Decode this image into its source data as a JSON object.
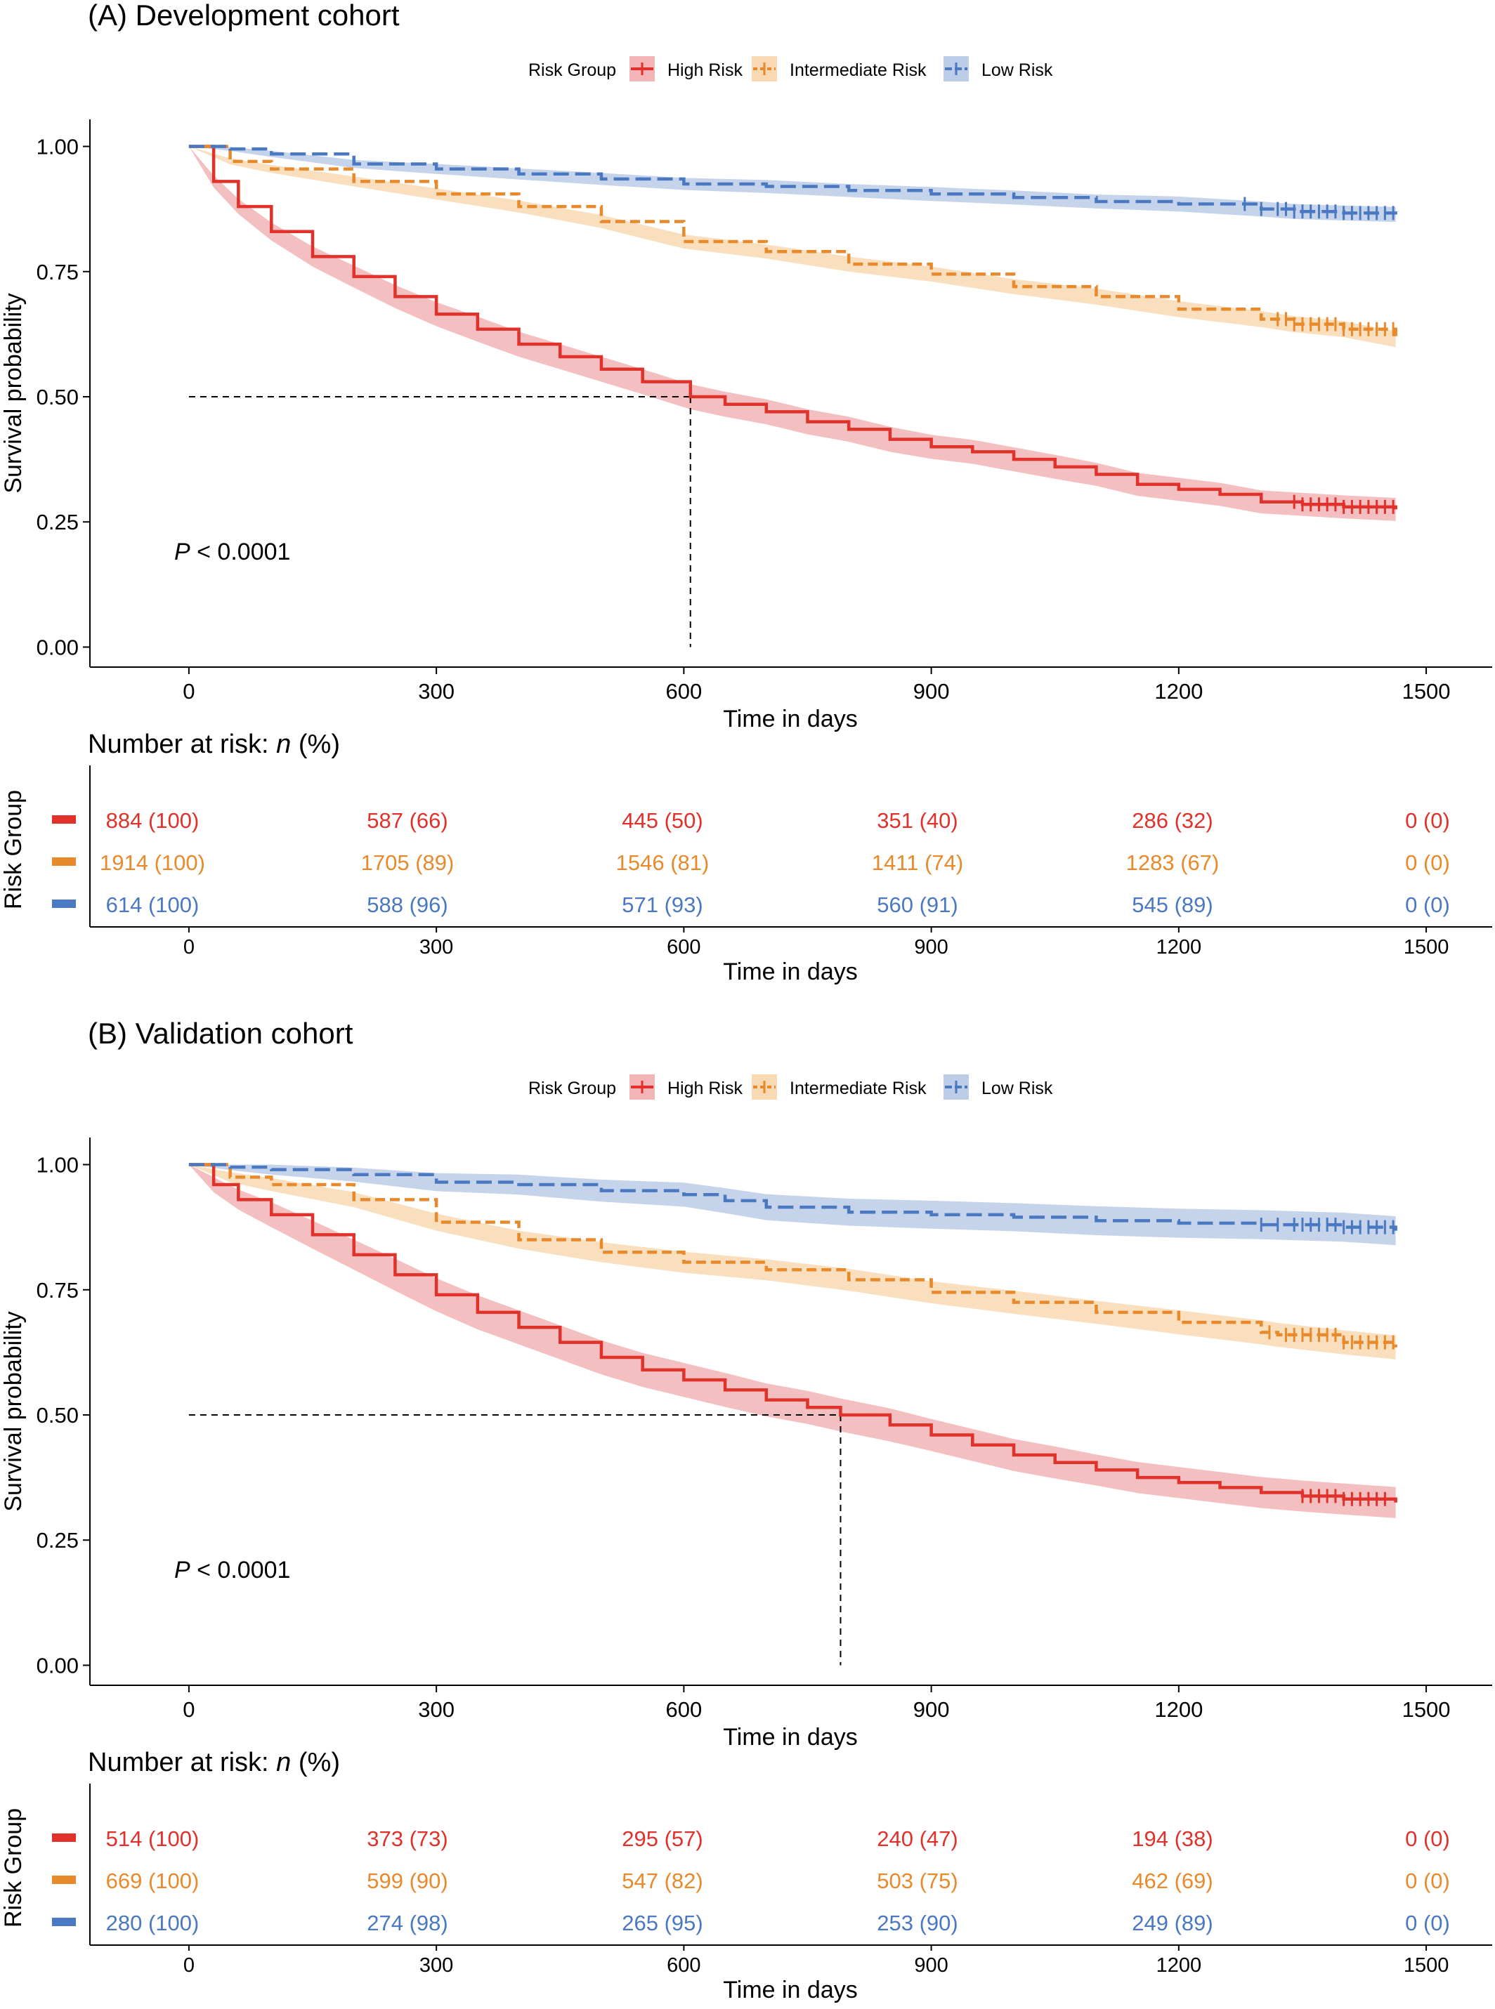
{
  "panels": [
    {
      "id": "A",
      "title": "(A) Development cohort",
      "pvalue_prefix": "P",
      "pvalue_text": " < 0.0001"
    },
    {
      "id": "B",
      "title": "(B) Validation cohort",
      "pvalue_prefix": "P",
      "pvalue_text": " < 0.0001"
    }
  ],
  "legend": {
    "title": "Risk Group",
    "items": [
      "High Risk",
      "Intermediate Risk",
      "Low Risk"
    ]
  },
  "risk_table": {
    "title_prefix": "Number at risk: ",
    "title_italic": "n",
    "title_suffix": " (%)",
    "ylabel": "Risk Group"
  },
  "colors": {
    "high": "#e0312a",
    "intermediate": "#e8892b",
    "low": "#4a78c1",
    "high_band": "#f2b4b6",
    "intermediate_band": "#f8d9b3",
    "low_band": "#bccde8"
  },
  "chart_data": [
    {
      "type": "line",
      "title": "(A) Development cohort",
      "xlabel": "Time in days",
      "ylabel": "Survival probability",
      "xlim": [
        -120,
        1580
      ],
      "ylim": [
        -0.04,
        1.04
      ],
      "x_ticks": [
        0,
        300,
        600,
        900,
        1200,
        1500
      ],
      "y_ticks": [
        0.0,
        0.25,
        0.5,
        0.75,
        1.0
      ],
      "y_tick_labels": [
        "0.00",
        "0.25",
        "0.50",
        "0.75",
        "1.00"
      ],
      "median_line": {
        "x": 608,
        "y": 0.5
      },
      "series": [
        {
          "name": "High Risk",
          "x": [
            0,
            30,
            60,
            100,
            150,
            200,
            250,
            300,
            350,
            400,
            450,
            500,
            550,
            608,
            650,
            700,
            750,
            800,
            850,
            900,
            950,
            1000,
            1050,
            1100,
            1150,
            1200,
            1250,
            1300,
            1350,
            1400,
            1463
          ],
          "y": [
            1.0,
            0.93,
            0.88,
            0.83,
            0.78,
            0.74,
            0.7,
            0.665,
            0.635,
            0.605,
            0.58,
            0.555,
            0.53,
            0.5,
            0.485,
            0.47,
            0.45,
            0.435,
            0.415,
            0.4,
            0.39,
            0.375,
            0.36,
            0.345,
            0.325,
            0.315,
            0.305,
            0.29,
            0.285,
            0.28,
            0.275
          ],
          "ci_halfwidth": [
            0.0,
            0.012,
            0.015,
            0.018,
            0.02,
            0.022,
            0.023,
            0.024,
            0.025,
            0.025,
            0.025,
            0.025,
            0.025,
            0.025,
            0.025,
            0.025,
            0.025,
            0.025,
            0.025,
            0.024,
            0.024,
            0.024,
            0.024,
            0.023,
            0.023,
            0.023,
            0.023,
            0.023,
            0.023,
            0.023,
            0.023
          ],
          "censor_x": [
            1340,
            1350,
            1360,
            1370,
            1380,
            1390,
            1400,
            1410,
            1420,
            1430,
            1440,
            1450,
            1460
          ],
          "at_risk": [
            "884 (100)",
            "587 (66)",
            "445 (50)",
            "351 (40)",
            "286 (32)",
            "0 (0)"
          ]
        },
        {
          "name": "Intermediate Risk",
          "x": [
            0,
            50,
            100,
            200,
            300,
            400,
            500,
            600,
            700,
            800,
            900,
            1000,
            1100,
            1200,
            1300,
            1340,
            1400,
            1463
          ],
          "y": [
            1.0,
            0.97,
            0.955,
            0.93,
            0.905,
            0.88,
            0.85,
            0.81,
            0.79,
            0.765,
            0.745,
            0.72,
            0.7,
            0.675,
            0.655,
            0.645,
            0.635,
            0.615
          ],
          "ci_halfwidth": [
            0.0,
            0.006,
            0.008,
            0.01,
            0.011,
            0.012,
            0.013,
            0.014,
            0.014,
            0.015,
            0.015,
            0.015,
            0.016,
            0.016,
            0.016,
            0.016,
            0.016,
            0.016
          ],
          "censor_x": [
            1320,
            1330,
            1340,
            1350,
            1360,
            1370,
            1380,
            1390,
            1400,
            1410,
            1420,
            1430,
            1440,
            1450,
            1460
          ],
          "at_risk": [
            "1914 (100)",
            "1705 (89)",
            "1546 (81)",
            "1411 (74)",
            "1283 (67)",
            "0 (0)"
          ]
        },
        {
          "name": "Low Risk",
          "x": [
            0,
            50,
            100,
            200,
            300,
            400,
            500,
            600,
            700,
            800,
            900,
            1000,
            1100,
            1200,
            1300,
            1340,
            1400,
            1463
          ],
          "y": [
            1.0,
            0.995,
            0.985,
            0.965,
            0.955,
            0.945,
            0.935,
            0.925,
            0.92,
            0.912,
            0.905,
            0.898,
            0.89,
            0.885,
            0.875,
            0.87,
            0.867,
            0.864
          ],
          "ci_halfwidth": [
            0.0,
            0.004,
            0.006,
            0.008,
            0.01,
            0.011,
            0.012,
            0.012,
            0.013,
            0.013,
            0.014,
            0.014,
            0.014,
            0.015,
            0.015,
            0.015,
            0.015,
            0.015
          ],
          "censor_x": [
            1280,
            1300,
            1320,
            1330,
            1340,
            1350,
            1360,
            1370,
            1380,
            1390,
            1400,
            1410,
            1420,
            1430,
            1440,
            1450,
            1460
          ],
          "at_risk": [
            "614 (100)",
            "588 (96)",
            "571 (93)",
            "560 (91)",
            "545 (89)",
            "0 (0)"
          ]
        }
      ]
    },
    {
      "type": "line",
      "title": "(B) Validation cohort",
      "xlabel": "Time in days",
      "ylabel": "Survival probability",
      "xlim": [
        -120,
        1580
      ],
      "ylim": [
        -0.04,
        1.04
      ],
      "x_ticks": [
        0,
        300,
        600,
        900,
        1200,
        1500
      ],
      "y_ticks": [
        0.0,
        0.25,
        0.5,
        0.75,
        1.0
      ],
      "y_tick_labels": [
        "0.00",
        "0.25",
        "0.50",
        "0.75",
        "1.00"
      ],
      "median_line": {
        "x": 790,
        "y": 0.5
      },
      "series": [
        {
          "name": "High Risk",
          "x": [
            0,
            30,
            60,
            100,
            150,
            200,
            250,
            300,
            350,
            400,
            450,
            500,
            550,
            600,
            650,
            700,
            750,
            790,
            850,
            900,
            950,
            1000,
            1050,
            1100,
            1150,
            1200,
            1250,
            1300,
            1350,
            1400,
            1463
          ],
          "y": [
            1.0,
            0.96,
            0.93,
            0.9,
            0.86,
            0.82,
            0.78,
            0.74,
            0.705,
            0.675,
            0.645,
            0.615,
            0.59,
            0.57,
            0.55,
            0.53,
            0.515,
            0.5,
            0.48,
            0.46,
            0.44,
            0.42,
            0.405,
            0.39,
            0.375,
            0.365,
            0.355,
            0.345,
            0.338,
            0.332,
            0.325
          ],
          "ci_halfwidth": [
            0.0,
            0.015,
            0.02,
            0.025,
            0.028,
            0.03,
            0.032,
            0.033,
            0.034,
            0.034,
            0.034,
            0.034,
            0.034,
            0.034,
            0.034,
            0.033,
            0.033,
            0.033,
            0.033,
            0.032,
            0.032,
            0.032,
            0.032,
            0.031,
            0.031,
            0.031,
            0.031,
            0.031,
            0.031,
            0.031,
            0.031
          ],
          "censor_x": [
            1350,
            1360,
            1370,
            1380,
            1390,
            1400,
            1410,
            1420,
            1430,
            1440,
            1450
          ],
          "at_risk": [
            "514 (100)",
            "373 (73)",
            "295 (57)",
            "240 (47)",
            "194 (38)",
            "0 (0)"
          ]
        },
        {
          "name": "Intermediate Risk",
          "x": [
            0,
            50,
            100,
            200,
            300,
            400,
            500,
            600,
            700,
            800,
            900,
            1000,
            1100,
            1200,
            1300,
            1320,
            1400,
            1463
          ],
          "y": [
            1.0,
            0.975,
            0.96,
            0.93,
            0.885,
            0.85,
            0.825,
            0.805,
            0.79,
            0.77,
            0.745,
            0.725,
            0.705,
            0.685,
            0.665,
            0.66,
            0.645,
            0.635
          ],
          "ci_halfwidth": [
            0.0,
            0.01,
            0.013,
            0.015,
            0.017,
            0.018,
            0.02,
            0.021,
            0.021,
            0.022,
            0.022,
            0.023,
            0.023,
            0.024,
            0.024,
            0.024,
            0.024,
            0.024
          ],
          "censor_x": [
            1310,
            1330,
            1340,
            1350,
            1360,
            1370,
            1380,
            1390,
            1400,
            1410,
            1420,
            1430,
            1440,
            1450,
            1460
          ],
          "at_risk": [
            "669 (100)",
            "599 (90)",
            "547 (82)",
            "503 (75)",
            "462 (69)",
            "0 (0)"
          ]
        },
        {
          "name": "Low Risk",
          "x": [
            0,
            50,
            100,
            200,
            300,
            400,
            500,
            600,
            650,
            700,
            800,
            900,
            1000,
            1100,
            1200,
            1300,
            1400,
            1463
          ],
          "y": [
            1.0,
            0.995,
            0.99,
            0.98,
            0.965,
            0.96,
            0.948,
            0.94,
            0.928,
            0.915,
            0.905,
            0.9,
            0.895,
            0.888,
            0.883,
            0.88,
            0.875,
            0.868
          ],
          "ci_halfwidth": [
            0.0,
            0.006,
            0.01,
            0.014,
            0.018,
            0.02,
            0.022,
            0.024,
            0.025,
            0.026,
            0.027,
            0.028,
            0.028,
            0.029,
            0.029,
            0.029,
            0.029,
            0.029
          ],
          "censor_x": [
            1300,
            1320,
            1340,
            1350,
            1360,
            1370,
            1380,
            1390,
            1400,
            1410,
            1420,
            1430,
            1440,
            1450,
            1460
          ],
          "at_risk": [
            "280 (100)",
            "274 (98)",
            "265 (95)",
            "253 (90)",
            "249 (89)",
            "0 (0)"
          ]
        }
      ]
    }
  ]
}
